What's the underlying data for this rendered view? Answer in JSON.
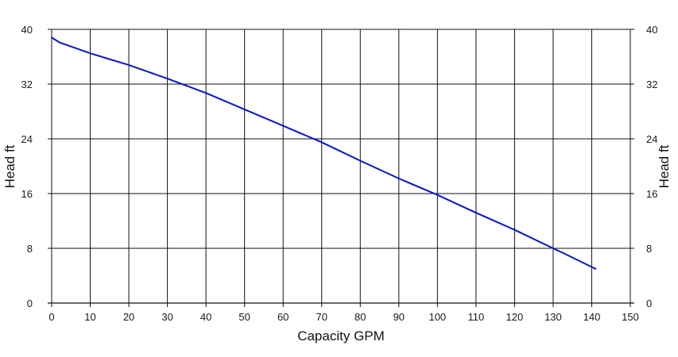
{
  "chart_data": {
    "type": "line",
    "xlabel": "Capacity GPM",
    "ylabel": "Head ft",
    "ylabel_right": "Head ft",
    "xlim": [
      0,
      150
    ],
    "ylim": [
      0,
      40
    ],
    "x_ticks": [
      0,
      10,
      20,
      30,
      40,
      50,
      60,
      70,
      80,
      90,
      100,
      110,
      120,
      130,
      140,
      150
    ],
    "y_ticks": [
      0,
      8,
      16,
      24,
      32,
      40
    ],
    "x_tick_labels": [
      "0",
      "10",
      "20",
      "30",
      "40",
      "50",
      "60",
      "70",
      "80",
      "90",
      "100",
      "110",
      "120",
      "130",
      "140",
      "150"
    ],
    "y_tick_labels": [
      "0",
      "8",
      "16",
      "24",
      "32",
      "40"
    ],
    "grid": true,
    "line_color": "#0a14c8",
    "series": [
      {
        "x": [
          0,
          2,
          10,
          20,
          30,
          40,
          50,
          60,
          70,
          80,
          90,
          100,
          110,
          120,
          130,
          133,
          141
        ],
        "y": [
          38.8,
          38.1,
          36.5,
          34.8,
          32.8,
          30.7,
          28.3,
          25.9,
          23.5,
          20.8,
          18.2,
          15.8,
          13.2,
          10.7,
          8.0,
          7.2,
          5.0
        ]
      }
    ]
  }
}
